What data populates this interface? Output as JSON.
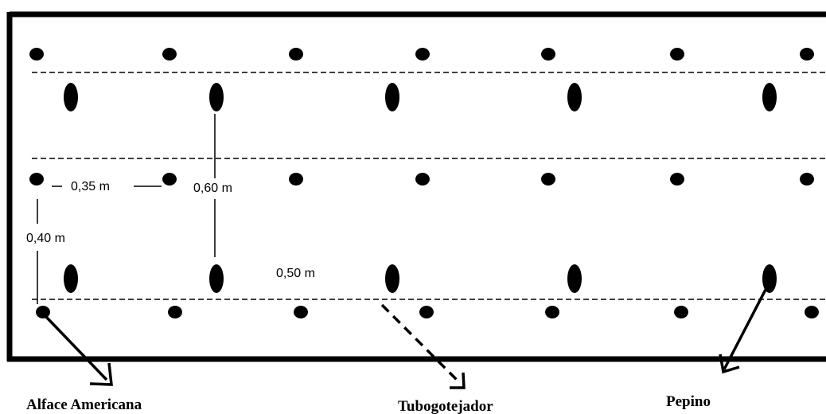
{
  "diagram": {
    "legend": {
      "lettuce": "Alface Americana",
      "drip_tube": "Tubogotejador",
      "cucumber": "Pepino"
    },
    "dimensions": {
      "lettuce_spacing": "0,35 m",
      "cucumber_row_spacing": "0,60 m",
      "lettuce_row_spacing": "0,40 m",
      "cucumber_spacing": "0,50 m"
    }
  }
}
